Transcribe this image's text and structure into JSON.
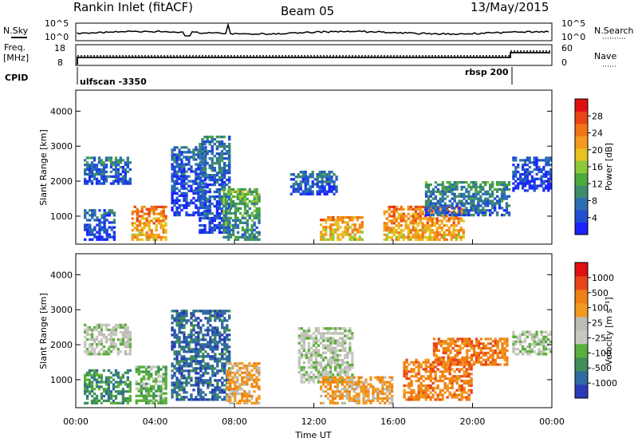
{
  "header": {
    "station": "Rankin Inlet (fitACF)",
    "beam": "Beam 05",
    "date": "13/May/2015"
  },
  "noise_panel": {
    "left_label": "N.Sky",
    "right_label": "N.Search",
    "ticks": [
      "10^5",
      "10^0"
    ]
  },
  "freq_panel": {
    "left_label_1": "Freq.",
    "left_label_2": "[MHz]",
    "left_ticks": [
      "18",
      "8"
    ],
    "right_label": "Nave",
    "right_ticks": [
      "60",
      "0"
    ]
  },
  "cpid": {
    "label": "CPID",
    "entries": [
      "ulfscan -3350",
      "rbsp 200"
    ]
  },
  "colors": {
    "power": [
      "#1a23ff",
      "#1f4fd1",
      "#2b6fb0",
      "#3f8c6b",
      "#4caa3f",
      "#8cc83a",
      "#e6c21f",
      "#f59a1e",
      "#f07514",
      "#e84414",
      "#e01010"
    ],
    "velocity": [
      "#2a3bb8",
      "#2f6aa0",
      "#3f8f5a",
      "#5ab03c",
      "#c8c8c0",
      "#bcbcb4",
      "#f29a20",
      "#f07f14",
      "#e8441a",
      "#e01010"
    ]
  },
  "chart_data": [
    {
      "type": "heatmap",
      "panel": "power",
      "ylabel": "Slant Range [km]",
      "yticks": [
        "1000",
        "2000",
        "3000",
        "4000"
      ],
      "ylim": [
        200,
        4600
      ],
      "xlim": [
        0,
        24
      ],
      "colorbar_label": "Power [dB]",
      "colorbar_ticks": [
        "4",
        "8",
        "12",
        "16",
        "20",
        "24",
        "28"
      ],
      "colorbar_range": [
        0,
        32
      ],
      "echo_regions": [
        {
          "t0": 0.4,
          "t1": 2.8,
          "r0": 1900,
          "r1": 2700,
          "level": 8
        },
        {
          "t0": 0.4,
          "t1": 2.0,
          "r0": 300,
          "r1": 1200,
          "level": 6
        },
        {
          "t0": 2.8,
          "t1": 4.6,
          "r0": 300,
          "r1": 1300,
          "level": 26
        },
        {
          "t0": 4.8,
          "t1": 6.6,
          "r0": 1000,
          "r1": 3000,
          "level": 6
        },
        {
          "t0": 6.2,
          "t1": 7.8,
          "r0": 500,
          "r1": 3300,
          "level": 8
        },
        {
          "t0": 7.4,
          "t1": 9.3,
          "r0": 300,
          "r1": 1800,
          "level": 14
        },
        {
          "t0": 10.8,
          "t1": 13.2,
          "r0": 1600,
          "r1": 2300,
          "level": 7
        },
        {
          "t0": 12.3,
          "t1": 14.5,
          "r0": 300,
          "r1": 1000,
          "level": 24
        },
        {
          "t0": 15.5,
          "t1": 19.6,
          "r0": 300,
          "r1": 1300,
          "level": 26
        },
        {
          "t0": 17.6,
          "t1": 21.9,
          "r0": 1000,
          "r1": 2000,
          "level": 10
        },
        {
          "t0": 22.0,
          "t1": 24.0,
          "r0": 1700,
          "r1": 2700,
          "level": 5
        }
      ]
    },
    {
      "type": "heatmap",
      "panel": "velocity",
      "ylabel": "Slant Range [km]",
      "yticks": [
        "1000",
        "2000",
        "3000",
        "4000"
      ],
      "ylim": [
        200,
        4600
      ],
      "xlim": [
        0,
        24
      ],
      "xticks": [
        "00:00",
        "04:00",
        "08:00",
        "12:00",
        "16:00",
        "20:00",
        "00:00"
      ],
      "xlabel": "Time UT",
      "colorbar_label": "Velocity [m s⁻¹]",
      "colorbar_ticks": [
        "1000",
        "500",
        "100",
        "25",
        "-25",
        "-100",
        "-500",
        "-1000"
      ],
      "echo_regions": [
        {
          "t0": 0.4,
          "t1": 2.8,
          "r0": 1700,
          "r1": 2600,
          "level": 4
        },
        {
          "t0": 0.4,
          "t1": 2.8,
          "r0": 300,
          "r1": 1300,
          "level": 2
        },
        {
          "t0": 3.0,
          "t1": 4.6,
          "r0": 300,
          "r1": 1400,
          "level": 3
        },
        {
          "t0": 4.8,
          "t1": 7.8,
          "r0": 400,
          "r1": 3000,
          "level": 1
        },
        {
          "t0": 7.6,
          "t1": 9.3,
          "r0": 300,
          "r1": 1500,
          "level": 6
        },
        {
          "t0": 11.2,
          "t1": 14.0,
          "r0": 900,
          "r1": 2500,
          "level": 4
        },
        {
          "t0": 12.3,
          "t1": 16.0,
          "r0": 300,
          "r1": 1100,
          "level": 6
        },
        {
          "t0": 16.5,
          "t1": 20.0,
          "r0": 400,
          "r1": 1600,
          "level": 7
        },
        {
          "t0": 18.0,
          "t1": 21.8,
          "r0": 1400,
          "r1": 2200,
          "level": 7
        },
        {
          "t0": 22.0,
          "t1": 24.0,
          "r0": 1700,
          "r1": 2400,
          "level": 4
        }
      ]
    }
  ]
}
